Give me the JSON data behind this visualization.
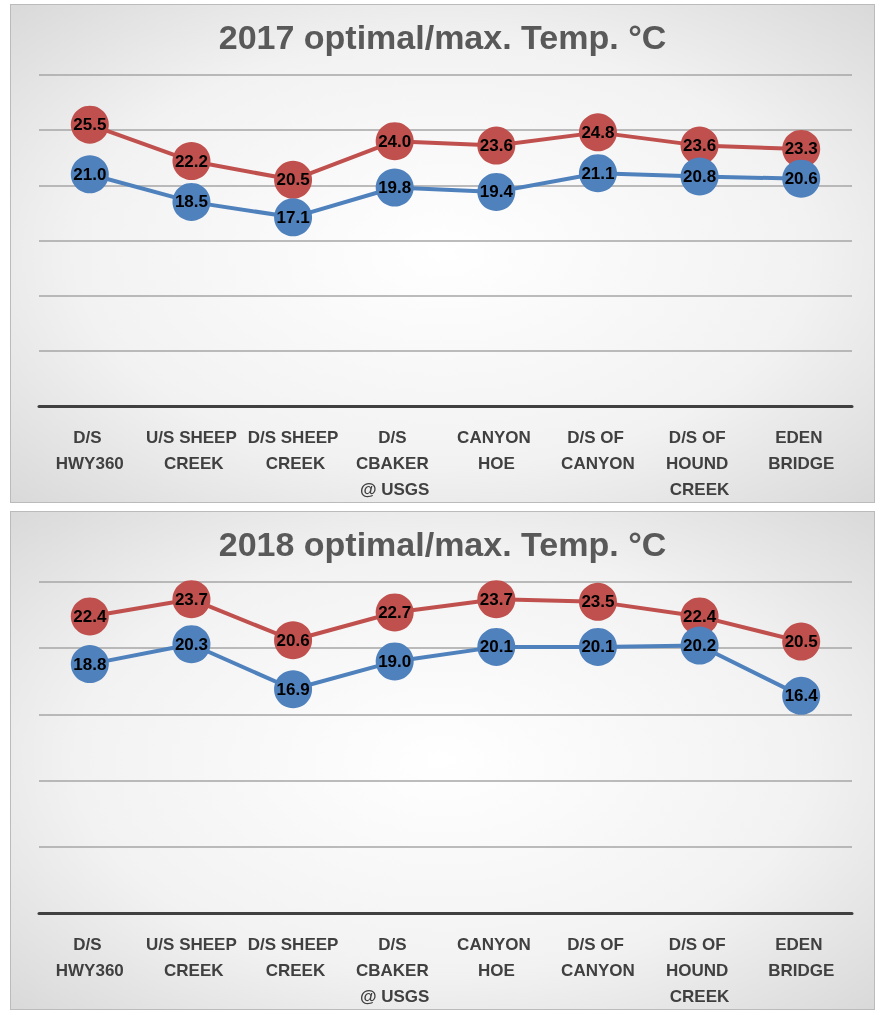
{
  "chart_data": [
    {
      "type": "line",
      "title": "2017 optimal/max. Temp. °C",
      "categories": [
        "D/S HWY360",
        "U/S SHEEP CREEK",
        "D/S SHEEP CREEK",
        "D/S CBAKER @ USGS",
        "CANYON HOE",
        "D/S OF CANYON",
        "D/S OF HOUND CREEK",
        "EDEN BRIDGE"
      ],
      "series": [
        {
          "color": "#c0504d",
          "values": [
            25.5,
            22.2,
            20.5,
            24.0,
            23.6,
            24.8,
            23.6,
            23.3
          ],
          "value_labels": [
            "25.5",
            "22.2",
            "20.5",
            "24.0",
            "23.6",
            "24.8",
            "23.6",
            "23.3"
          ]
        },
        {
          "color": "#4f81bd",
          "values": [
            21.0,
            18.5,
            17.1,
            19.8,
            19.4,
            21.1,
            20.8,
            20.6
          ],
          "value_labels": [
            "21.0",
            "18.5",
            "17.1",
            "19.8",
            "19.4",
            "21.1",
            "20.8",
            "20.6"
          ]
        }
      ],
      "ylim": [
        0,
        30
      ],
      "yticks": [
        {
          "value": 0,
          "label": null
        },
        {
          "value": 5,
          "label": null
        },
        {
          "value": 10,
          "label": null
        },
        {
          "value": 15,
          "label": null
        },
        {
          "value": 20,
          "label": null
        },
        {
          "value": 25,
          "label": null
        },
        {
          "value": 30,
          "label": null
        }
      ],
      "tick_labels": "x",
      "grid": "y",
      "marker": "circle"
    },
    {
      "type": "line",
      "title": "2018 optimal/max. Temp. °C",
      "categories": [
        "D/S HWY360",
        "U/S SHEEP CREEK",
        "D/S SHEEP CREEK",
        "D/S CBAKER @ USGS",
        "CANYON HOE",
        "D/S OF CANYON",
        "D/S OF HOUND CREEK",
        "EDEN BRIDGE"
      ],
      "series": [
        {
          "color": "#c0504d",
          "values": [
            22.4,
            23.7,
            20.6,
            22.7,
            23.7,
            23.5,
            22.4,
            20.5
          ],
          "value_labels": [
            "22.4",
            "23.7",
            "20.6",
            "22.7",
            "23.7",
            "23.5",
            "22.4",
            "20.5"
          ]
        },
        {
          "color": "#4f81bd",
          "values": [
            18.8,
            20.3,
            16.9,
            19.0,
            20.1,
            20.1,
            20.2,
            16.4
          ],
          "value_labels": [
            "18.8",
            "20.3",
            "16.9",
            "19.0",
            "20.1",
            "20.1",
            "20.2",
            "16.4"
          ]
        }
      ],
      "ylim": [
        0,
        25
      ],
      "yticks": [
        {
          "value": 0,
          "label": null
        },
        {
          "value": 5,
          "label": null
        },
        {
          "value": 10,
          "label": null
        },
        {
          "value": 15,
          "label": null
        },
        {
          "value": 20,
          "label": null
        },
        {
          "value": 25,
          "label": null
        }
      ],
      "tick_labels": "x",
      "grid": "y",
      "marker": "circle"
    }
  ]
}
